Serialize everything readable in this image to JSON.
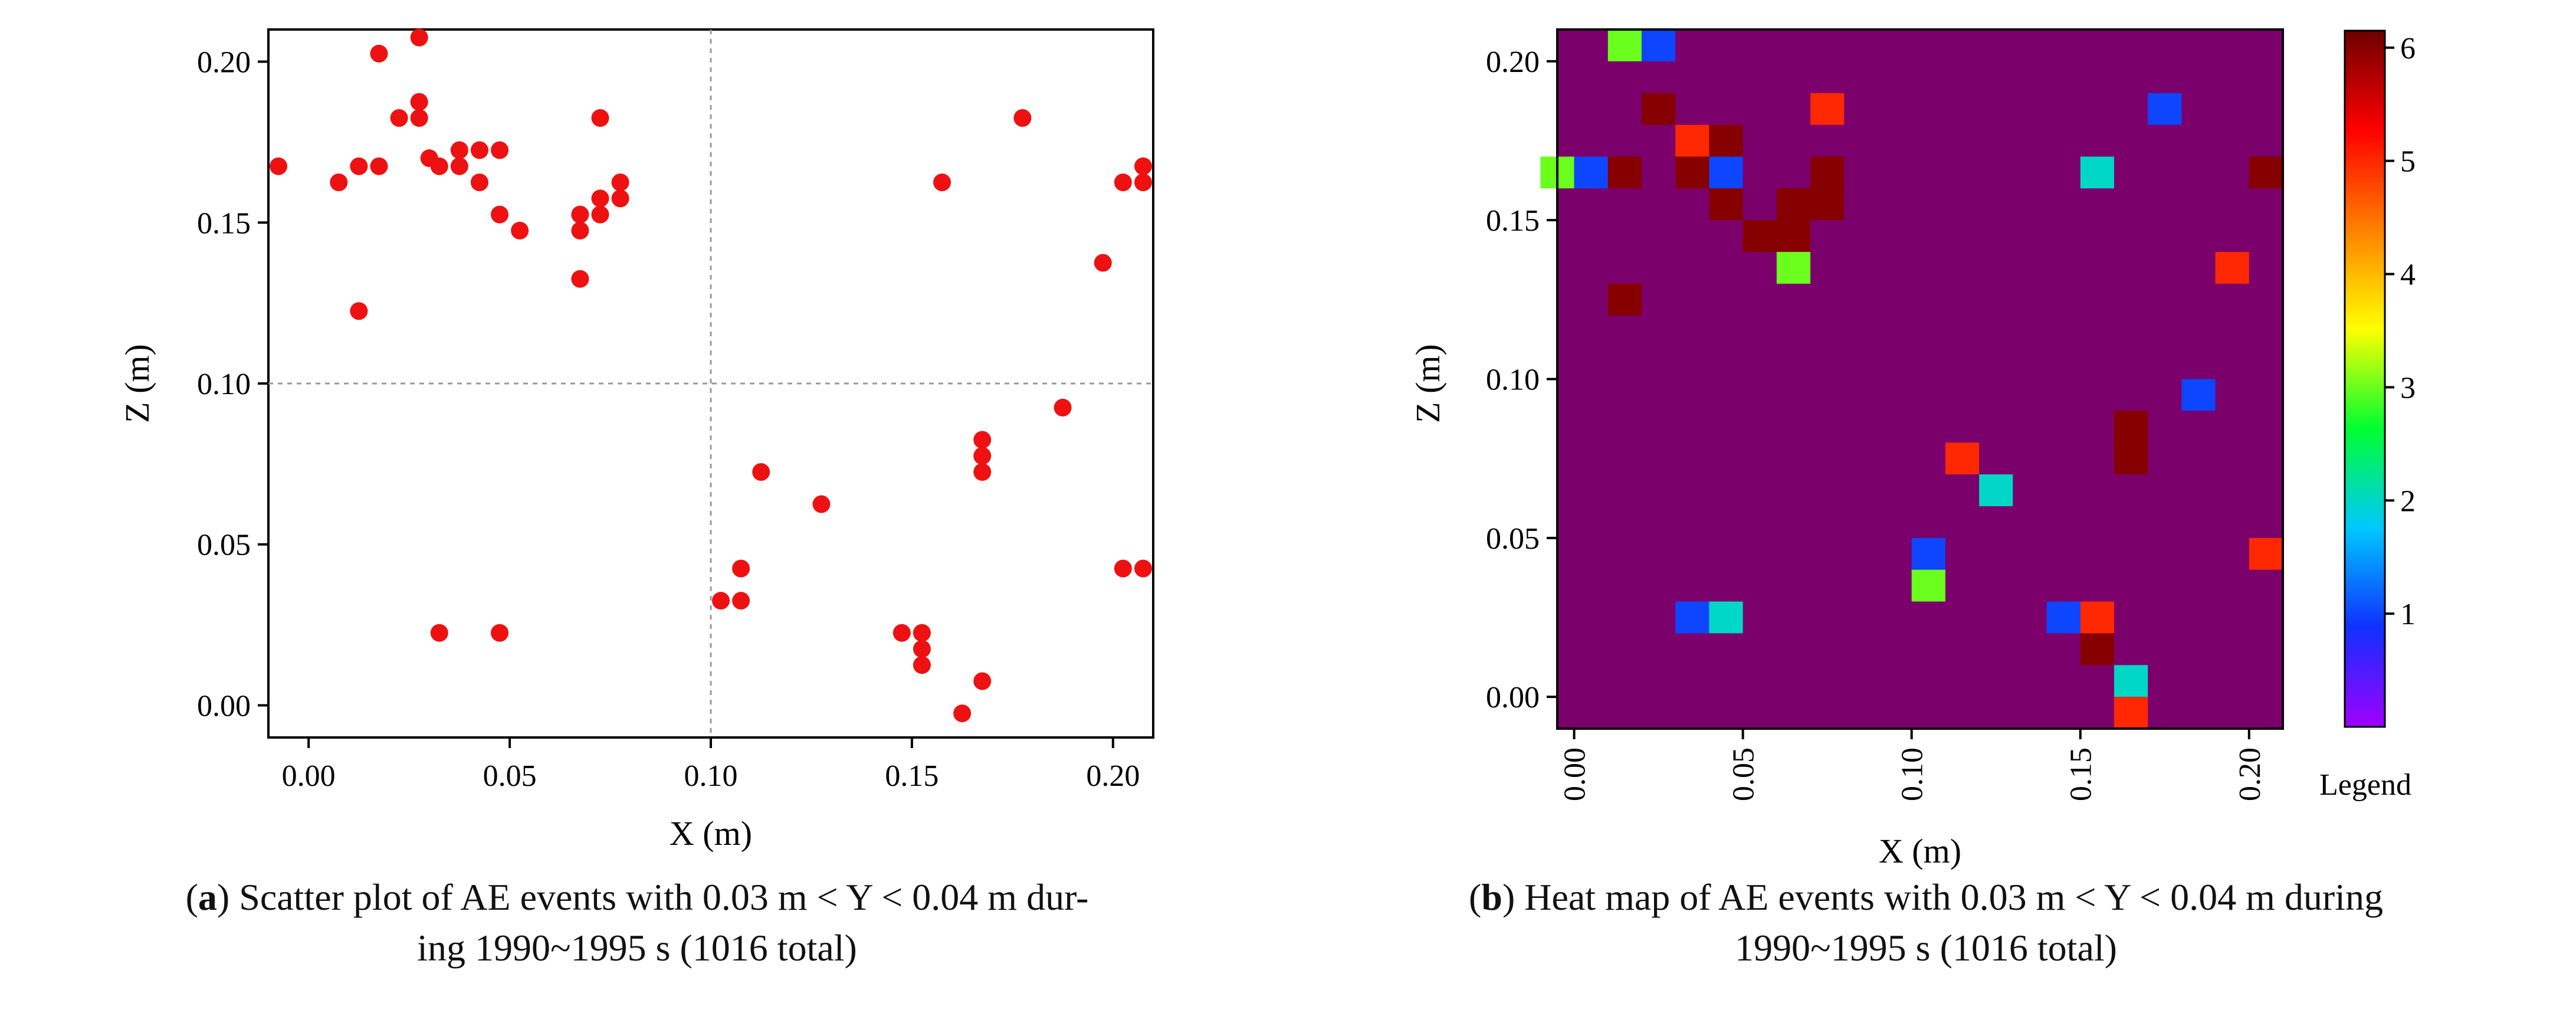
{
  "chart_data": [
    {
      "type": "scatter",
      "caption_label": "a",
      "caption_text": "Scatter plot of AE events with 0.03 m < Y < 0.04 m dur-",
      "caption_line2": "ing 1990~1995 s (1016 total)",
      "xlabel": "X (m)",
      "ylabel": "Z (m)",
      "xlim": [
        -0.01,
        0.21
      ],
      "ylim": [
        -0.01,
        0.21
      ],
      "xticks": [
        0.0,
        0.05,
        0.1,
        0.15,
        0.2
      ],
      "yticks": [
        0.0,
        0.05,
        0.1,
        0.15,
        0.2
      ],
      "xtick_labels": [
        "0.00",
        "0.05",
        "0.10",
        "0.15",
        "0.20"
      ],
      "ytick_labels": [
        "0.00",
        "0.05",
        "0.10",
        "0.15",
        "0.20"
      ],
      "reference_lines": {
        "x": 0.1,
        "z": 0.1
      },
      "marker_color": "#ee1111",
      "points": [
        [
          -0.0075,
          0.1675
        ],
        [
          0.0075,
          0.1625
        ],
        [
          0.0125,
          0.1675
        ],
        [
          0.0175,
          0.1675
        ],
        [
          0.0175,
          0.2025
        ],
        [
          0.0225,
          0.1825
        ],
        [
          0.0275,
          0.2075
        ],
        [
          0.0275,
          0.1875
        ],
        [
          0.0275,
          0.1825
        ],
        [
          0.03,
          0.17
        ],
        [
          0.0325,
          0.1675
        ],
        [
          0.0375,
          0.1725
        ],
        [
          0.0375,
          0.1675
        ],
        [
          0.0425,
          0.1725
        ],
        [
          0.0425,
          0.1625
        ],
        [
          0.0475,
          0.1725
        ],
        [
          0.0475,
          0.1525
        ],
        [
          0.0525,
          0.1475
        ],
        [
          0.0675,
          0.1525
        ],
        [
          0.0675,
          0.1475
        ],
        [
          0.0675,
          0.1325
        ],
        [
          0.0725,
          0.1825
        ],
        [
          0.0725,
          0.1575
        ],
        [
          0.0725,
          0.1525
        ],
        [
          0.0775,
          0.1625
        ],
        [
          0.0775,
          0.1575
        ],
        [
          0.0125,
          0.1225
        ],
        [
          0.0325,
          0.0225
        ],
        [
          0.0475,
          0.0225
        ],
        [
          0.1575,
          0.1625
        ],
        [
          0.1775,
          0.1825
        ],
        [
          0.1975,
          0.1375
        ],
        [
          0.2025,
          0.1625
        ],
        [
          0.2075,
          0.1675
        ],
        [
          0.2075,
          0.1625
        ],
        [
          0.1875,
          0.0925
        ],
        [
          0.1675,
          0.0825
        ],
        [
          0.1675,
          0.0775
        ],
        [
          0.1675,
          0.0725
        ],
        [
          0.1125,
          0.0725
        ],
        [
          0.1275,
          0.0625
        ],
        [
          0.1075,
          0.0425
        ],
        [
          0.1025,
          0.0325
        ],
        [
          0.1075,
          0.0325
        ],
        [
          0.1475,
          0.0225
        ],
        [
          0.1525,
          0.0225
        ],
        [
          0.1525,
          0.0175
        ],
        [
          0.1525,
          0.0125
        ],
        [
          0.1675,
          0.0075
        ],
        [
          0.1625,
          -0.0025
        ],
        [
          0.2025,
          0.0425
        ],
        [
          0.2075,
          0.0425
        ]
      ]
    },
    {
      "type": "heatmap",
      "caption_label": "b",
      "caption_text": "Heat map of AE events with 0.03 m < Y < 0.04 m during",
      "caption_line2": "1990~1995 s (1016 total)",
      "xlabel": "X (m)",
      "ylabel": "Z (m)",
      "xlim": [
        -0.005,
        0.21
      ],
      "ylim": [
        -0.01,
        0.21
      ],
      "cell_size": 0.01,
      "xticks": [
        0.0,
        0.05,
        0.1,
        0.15,
        0.2
      ],
      "yticks": [
        0.0,
        0.05,
        0.1,
        0.15,
        0.2
      ],
      "xtick_labels": [
        "0.00",
        "0.05",
        "0.10",
        "0.15",
        "0.20"
      ],
      "ytick_labels": [
        "0.00",
        "0.05",
        "0.10",
        "0.15",
        "0.20"
      ],
      "background_color": "#7b006b",
      "colorbar": {
        "range": [
          0,
          6.15
        ],
        "ticks": [
          1,
          2,
          3,
          4,
          5,
          6
        ],
        "tick_labels": [
          "1",
          "2",
          "3",
          "4",
          "5",
          "6"
        ],
        "label": "Legend",
        "stops": [
          "#a000ff",
          "#1030ff",
          "#00c8ff",
          "#00ff30",
          "#ffff00",
          "#ff8000",
          "#ff0000",
          "#6e0000"
        ]
      },
      "cells": [
        {
          "x": 0.015,
          "z": 0.205,
          "v": 3
        },
        {
          "x": 0.025,
          "z": 0.205,
          "v": 1
        },
        {
          "x": 0.025,
          "z": 0.185,
          "v": 6
        },
        {
          "x": 0.075,
          "z": 0.185,
          "v": 5
        },
        {
          "x": 0.175,
          "z": 0.185,
          "v": 1
        },
        {
          "x": 0.035,
          "z": 0.175,
          "v": 5
        },
        {
          "x": 0.045,
          "z": 0.175,
          "v": 6
        },
        {
          "x": -0.005,
          "z": 0.165,
          "v": 3
        },
        {
          "x": 0.005,
          "z": 0.165,
          "v": 1
        },
        {
          "x": 0.015,
          "z": 0.165,
          "v": 6
        },
        {
          "x": 0.035,
          "z": 0.165,
          "v": 6
        },
        {
          "x": 0.045,
          "z": 0.165,
          "v": 1
        },
        {
          "x": 0.075,
          "z": 0.165,
          "v": 6
        },
        {
          "x": 0.155,
          "z": 0.165,
          "v": 2
        },
        {
          "x": 0.205,
          "z": 0.165,
          "v": 6
        },
        {
          "x": 0.045,
          "z": 0.155,
          "v": 6
        },
        {
          "x": 0.065,
          "z": 0.155,
          "v": 6
        },
        {
          "x": 0.075,
          "z": 0.155,
          "v": 6
        },
        {
          "x": 0.055,
          "z": 0.145,
          "v": 6
        },
        {
          "x": 0.065,
          "z": 0.145,
          "v": 6
        },
        {
          "x": 0.065,
          "z": 0.135,
          "v": 3
        },
        {
          "x": 0.195,
          "z": 0.135,
          "v": 5
        },
        {
          "x": 0.015,
          "z": 0.125,
          "v": 6
        },
        {
          "x": 0.185,
          "z": 0.095,
          "v": 1
        },
        {
          "x": 0.165,
          "z": 0.085,
          "v": 6
        },
        {
          "x": 0.165,
          "z": 0.075,
          "v": 6
        },
        {
          "x": 0.115,
          "z": 0.075,
          "v": 5
        },
        {
          "x": 0.125,
          "z": 0.065,
          "v": 2
        },
        {
          "x": 0.105,
          "z": 0.045,
          "v": 1
        },
        {
          "x": 0.205,
          "z": 0.045,
          "v": 5
        },
        {
          "x": 0.105,
          "z": 0.035,
          "v": 3
        },
        {
          "x": 0.035,
          "z": 0.025,
          "v": 1
        },
        {
          "x": 0.045,
          "z": 0.025,
          "v": 2
        },
        {
          "x": 0.145,
          "z": 0.025,
          "v": 1
        },
        {
          "x": 0.155,
          "z": 0.025,
          "v": 5
        },
        {
          "x": 0.155,
          "z": 0.015,
          "v": 6
        },
        {
          "x": 0.165,
          "z": 0.005,
          "v": 2
        },
        {
          "x": 0.165,
          "z": -0.005,
          "v": 5
        }
      ]
    }
  ]
}
